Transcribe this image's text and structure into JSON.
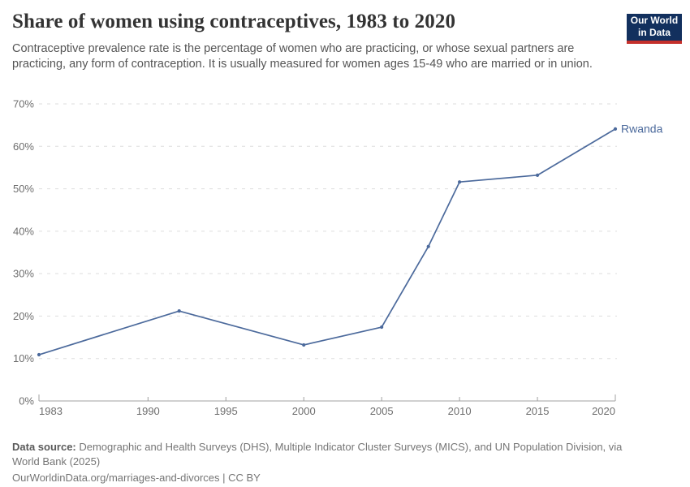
{
  "header": {
    "title": "Share of women using contraceptives, 1983 to 2020",
    "subtitle": "Contraceptive prevalence rate is the percentage of women who are practicing, or whose sexual partners are practicing, any form of contraception. It is usually measured for women ages 15-49 who are married or in union.",
    "logo": {
      "line1": "Our World",
      "line2": "in Data",
      "bg_color": "#12305E",
      "accent_color": "#C5302B"
    }
  },
  "chart_data": {
    "type": "line",
    "title": "Share of women using contraceptives, 1983 to 2020",
    "xlabel": "",
    "ylabel": "",
    "xlim": [
      1983,
      2020
    ],
    "ylim": [
      0,
      70
    ],
    "grid": "dashed-horizontal",
    "x_ticks": [
      1983,
      1990,
      1995,
      2000,
      2005,
      2010,
      2015,
      2020
    ],
    "y_tick_values": [
      0,
      10,
      20,
      30,
      40,
      50,
      60,
      70
    ],
    "y_tick_labels": [
      "0%",
      "10%",
      "20%",
      "30%",
      "40%",
      "50%",
      "60%",
      "70%"
    ],
    "series": [
      {
        "name": "Rwanda",
        "color": "#4C6A9C",
        "years": [
          1983,
          1992,
          2000,
          2005,
          2008,
          2010,
          2015,
          2020
        ],
        "values": [
          10.9,
          21.2,
          13.2,
          17.4,
          36.4,
          51.6,
          53.2,
          64.1
        ]
      }
    ],
    "colors": {
      "gridline": "#dddddd",
      "axis": "#a0a0a0",
      "tick_label": "#6e6e6e"
    }
  },
  "footer": {
    "source_label": "Data source:",
    "source_text": " Demographic and Health Surveys (DHS), Multiple Indicator Cluster Surveys (MICS), and UN Population Division, via World Bank (2025)",
    "citation": "OurWorldinData.org/marriages-and-divorces | CC BY"
  }
}
